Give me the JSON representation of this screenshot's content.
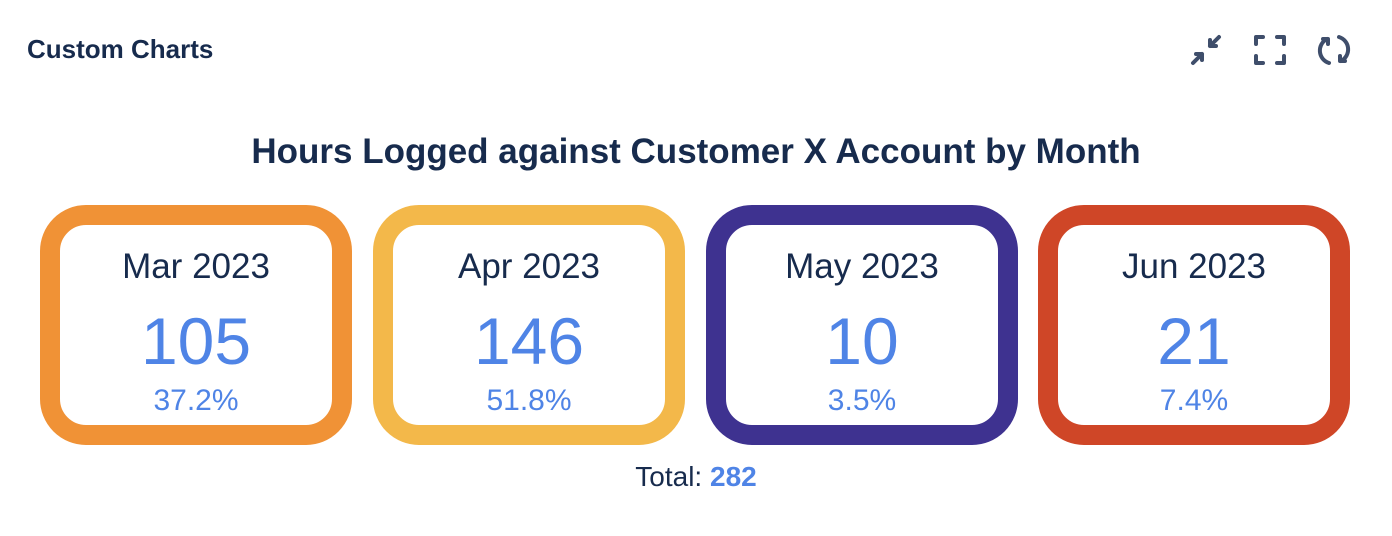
{
  "header": {
    "title": "Custom Charts",
    "icons": [
      "minimize-icon",
      "fullscreen-icon",
      "refresh-icon"
    ]
  },
  "chart_title": "Hours Logged against Customer X Account by Month",
  "cards": [
    {
      "month": "Mar 2023",
      "value": "105",
      "percent": "37.2%",
      "color": "#f09236"
    },
    {
      "month": "Apr 2023",
      "value": "146",
      "percent": "51.8%",
      "color": "#f3b84a"
    },
    {
      "month": "May 2023",
      "value": "10",
      "percent": "3.5%",
      "color": "#3e3290"
    },
    {
      "month": "Jun 2023",
      "value": "21",
      "percent": "7.4%",
      "color": "#cf4627"
    }
  ],
  "total": {
    "label": "Total:",
    "value": "282"
  }
}
